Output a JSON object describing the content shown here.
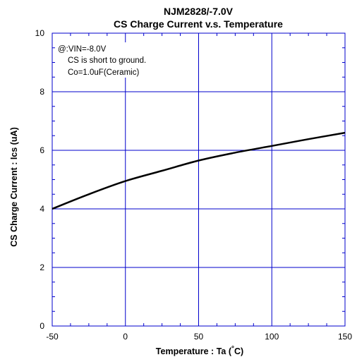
{
  "chart_data": {
    "type": "line",
    "title": "NJM2828/-7.0V",
    "subtitle": "CS Charge Current v.s. Temperature",
    "xlabel_main": "Temperature : Ta (",
    "xlabel_deg": "°",
    "xlabel_unit": "C)",
    "ylabel": "CS Charge Current : Ics (uA)",
    "xlim": [
      -50,
      150
    ],
    "ylim": [
      0,
      10
    ],
    "xticks": [
      -50,
      0,
      50,
      100,
      150
    ],
    "yticks": [
      0,
      2,
      4,
      6,
      8,
      10
    ],
    "grid": true,
    "colors": {
      "grid": "#0000cc",
      "line": "#000000"
    },
    "annotations": [
      "@:VIN=-8.0V",
      "CS is short to ground.",
      "Co=1.0uF(Ceramic)"
    ],
    "series": [
      {
        "x": [
          -50,
          -25,
          0,
          25,
          50,
          75,
          100,
          125,
          150
        ],
        "values": [
          4.0,
          4.5,
          4.95,
          5.3,
          5.65,
          5.92,
          6.15,
          6.38,
          6.6
        ]
      }
    ]
  }
}
